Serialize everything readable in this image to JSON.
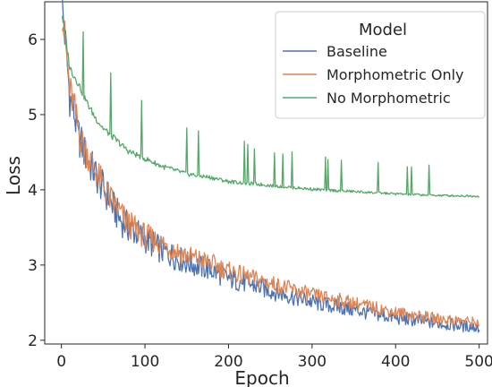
{
  "chart_data": {
    "type": "line",
    "title": "",
    "xlabel": "Epoch",
    "ylabel": "Loss",
    "xlim": [
      -20,
      510
    ],
    "ylim": [
      1.95,
      6.5
    ],
    "xticks": [
      0,
      100,
      200,
      300,
      400,
      500
    ],
    "yticks": [
      2,
      3,
      4,
      5,
      6
    ],
    "grid": false,
    "legend": {
      "title": "Model",
      "position": "top-right"
    },
    "series": [
      {
        "name": "Baseline",
        "color": "#4c72b0",
        "x": [
          1,
          5,
          10,
          15,
          20,
          25,
          30,
          40,
          50,
          60,
          70,
          80,
          100,
          120,
          150,
          180,
          200,
          250,
          300,
          350,
          400,
          450,
          500
        ],
        "y": [
          6.3,
          5.8,
          5.1,
          4.9,
          4.6,
          4.45,
          4.3,
          4.1,
          3.9,
          3.7,
          3.5,
          3.4,
          3.25,
          3.1,
          2.95,
          2.85,
          2.75,
          2.6,
          2.45,
          2.35,
          2.25,
          2.18,
          2.13
        ]
      },
      {
        "name": "Morphometric Only",
        "color": "#dd8452",
        "x": [
          1,
          5,
          10,
          15,
          20,
          25,
          30,
          40,
          50,
          60,
          70,
          80,
          100,
          120,
          150,
          180,
          200,
          250,
          300,
          350,
          400,
          450,
          500
        ],
        "y": [
          6.2,
          5.8,
          5.2,
          5.0,
          4.7,
          4.5,
          4.4,
          4.15,
          3.95,
          3.75,
          3.6,
          3.45,
          3.3,
          3.2,
          3.05,
          2.95,
          2.85,
          2.7,
          2.55,
          2.45,
          2.33,
          2.25,
          2.2
        ]
      },
      {
        "name": "No Morphometric",
        "color": "#55a868",
        "x": [
          1,
          5,
          10,
          15,
          20,
          30,
          40,
          50,
          60,
          70,
          80,
          100,
          120,
          150,
          180,
          200,
          250,
          300,
          350,
          400,
          450,
          500
        ],
        "y": [
          6.3,
          6.0,
          5.6,
          5.5,
          5.4,
          5.15,
          4.95,
          4.8,
          4.7,
          4.6,
          4.5,
          4.4,
          4.3,
          4.2,
          4.15,
          4.1,
          4.05,
          4.0,
          3.97,
          3.94,
          3.92,
          3.91
        ]
      }
    ]
  }
}
